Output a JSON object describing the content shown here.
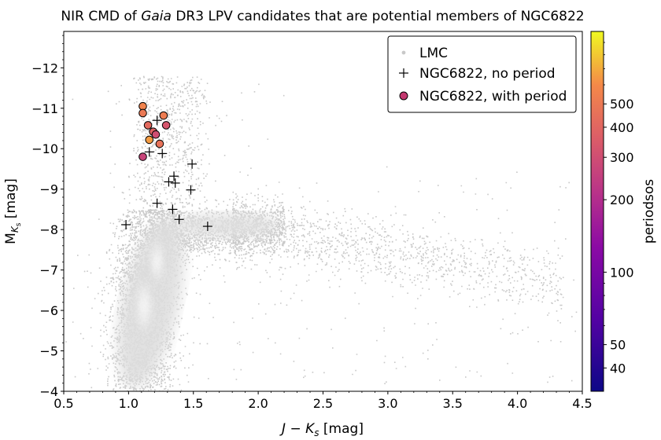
{
  "chart_data": {
    "type": "scatter",
    "title": {
      "prefix": "NIR CMD of ",
      "italic": "Gaia",
      "suffix": " DR3 LPV candidates that are potential members of NGC6822"
    },
    "xlabel": {
      "main": "J − K",
      "sub": "s",
      "unit": " [mag]"
    },
    "ylabel": {
      "main": "M",
      "sub": "K",
      "subsub": "s",
      "unit": " [mag]"
    },
    "xlim": [
      0.5,
      4.5
    ],
    "ylim": [
      -4,
      -12.9
    ],
    "y_inverted": true,
    "x_ticks": [
      0.5,
      1.0,
      1.5,
      2.0,
      2.5,
      3.0,
      3.5,
      4.0,
      4.5
    ],
    "x_tick_labels": [
      "0.5",
      "1.0",
      "1.5",
      "2.0",
      "2.5",
      "3.0",
      "3.5",
      "4.0",
      "4.5"
    ],
    "y_ticks": [
      -4,
      -5,
      -6,
      -7,
      -8,
      -9,
      -10,
      -11,
      -12
    ],
    "y_tick_labels": [
      "−4",
      "−5",
      "−6",
      "−7",
      "−8",
      "−9",
      "−10",
      "−11",
      "−12"
    ],
    "legend": {
      "location": "top-right",
      "entries": [
        "LMC",
        "NGC6822, no period",
        "NGC6822, with period"
      ]
    },
    "colorbar": {
      "label": "periodsos",
      "colormap": "plasma",
      "scale": "log",
      "range": [
        32,
        1000
      ],
      "ticks": [
        40,
        50,
        100,
        200,
        300,
        400,
        500
      ],
      "tick_labels": [
        "40",
        "50",
        "100",
        "200",
        "300",
        "400",
        "500"
      ]
    },
    "series": [
      {
        "name": "LMC",
        "marker": "point",
        "color": "#c8c8c8",
        "description": "dense background density of LMC LPVs; AGB branch rising from (1.1,-4) to (1.2,-8) then a red tail toward (4.3,-6.6)"
      },
      {
        "name": "NGC6822, no period",
        "marker": "plus",
        "color": "#000000",
        "points": [
          {
            "x": 0.98,
            "y": -8.12
          },
          {
            "x": 1.16,
            "y": -9.92
          },
          {
            "x": 1.22,
            "y": -8.65
          },
          {
            "x": 1.22,
            "y": -10.7
          },
          {
            "x": 1.26,
            "y": -9.88
          },
          {
            "x": 1.31,
            "y": -9.18
          },
          {
            "x": 1.34,
            "y": -8.5
          },
          {
            "x": 1.35,
            "y": -9.32
          },
          {
            "x": 1.36,
            "y": -9.15
          },
          {
            "x": 1.39,
            "y": -8.25
          },
          {
            "x": 1.48,
            "y": -8.98
          },
          {
            "x": 1.49,
            "y": -9.62
          },
          {
            "x": 1.61,
            "y": -8.08
          }
        ]
      },
      {
        "name": "NGC6822, with period",
        "marker": "circle",
        "points": [
          {
            "x": 1.11,
            "y": -11.05,
            "period": 560
          },
          {
            "x": 1.11,
            "y": -10.88,
            "period": 500
          },
          {
            "x": 1.11,
            "y": -9.8,
            "period": 270
          },
          {
            "x": 1.15,
            "y": -10.58,
            "period": 420
          },
          {
            "x": 1.16,
            "y": -10.22,
            "period": 650
          },
          {
            "x": 1.19,
            "y": -10.42,
            "period": 380
          },
          {
            "x": 1.21,
            "y": -10.35,
            "period": 300
          },
          {
            "x": 1.24,
            "y": -10.12,
            "period": 460
          },
          {
            "x": 1.27,
            "y": -10.82,
            "period": 520
          },
          {
            "x": 1.29,
            "y": -10.58,
            "period": 330
          }
        ]
      }
    ]
  }
}
